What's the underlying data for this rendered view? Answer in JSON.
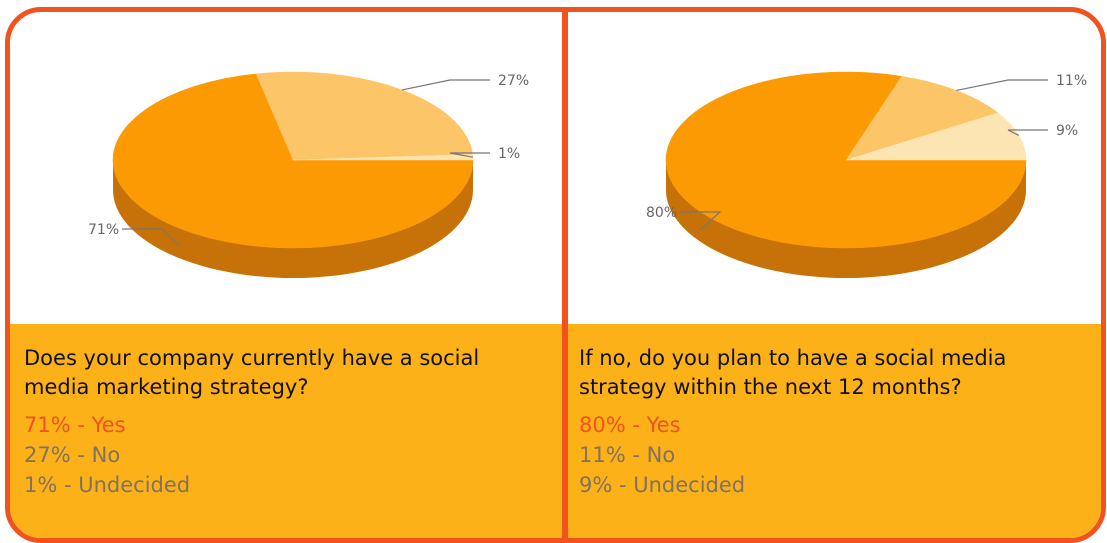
{
  "chart_data": [
    {
      "type": "pie",
      "title": "",
      "question": "Does your company currently have a social media marketing strategy?",
      "slices": [
        {
          "label": "Yes",
          "value": 71,
          "text": "71%",
          "color": "#fb9a03",
          "side": "#c77208"
        },
        {
          "label": "No",
          "value": 27,
          "text": "27%",
          "color": "#fcc567",
          "side": "#d99a3c"
        },
        {
          "label": "Undecided",
          "value": 1,
          "text": "1%",
          "color": "#fde4b3",
          "side": "#e3b97a"
        }
      ],
      "answers": [
        {
          "text": "71% - Yes",
          "highlight": true
        },
        {
          "text": "27% - No",
          "highlight": false
        },
        {
          "text": "1% - Undecided",
          "highlight": false
        }
      ]
    },
    {
      "type": "pie",
      "title": "",
      "question": "If no, do you plan to have a social media strategy within the next 12 months?",
      "slices": [
        {
          "label": "Yes",
          "value": 80,
          "text": "80%",
          "color": "#fb9a03",
          "side": "#c77208"
        },
        {
          "label": "No",
          "value": 11,
          "text": "11%",
          "color": "#fcc567",
          "side": "#d99a3c"
        },
        {
          "label": "Undecided",
          "value": 9,
          "text": "9%",
          "color": "#fde4b3",
          "side": "#e3b97a"
        }
      ],
      "answers": [
        {
          "text": "80% - Yes",
          "highlight": true
        },
        {
          "text": "11% - No",
          "highlight": false
        },
        {
          "text": "9% - Undecided",
          "highlight": false
        }
      ]
    }
  ],
  "colors": {
    "border": "#f1521e",
    "info_background": "#fdb118",
    "highlight_text": "#f1521e",
    "muted_text": "#7f7260",
    "label_text": "#666666"
  }
}
